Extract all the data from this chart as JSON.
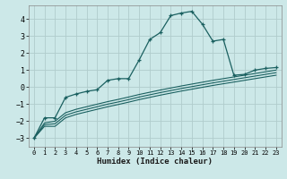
{
  "xlabel": "Humidex (Indice chaleur)",
  "background_color": "#cce8e8",
  "grid_color": "#b0cccc",
  "line_color": "#1a6060",
  "xlim": [
    -0.5,
    23.5
  ],
  "ylim": [
    -3.5,
    4.8
  ],
  "yticks": [
    -3,
    -2,
    -1,
    0,
    1,
    2,
    3,
    4
  ],
  "xticks": [
    0,
    1,
    2,
    3,
    4,
    5,
    6,
    7,
    8,
    9,
    10,
    11,
    12,
    13,
    14,
    15,
    16,
    17,
    18,
    19,
    20,
    21,
    22,
    23
  ],
  "series1_x": [
    0,
    1,
    2,
    3,
    4,
    5,
    6,
    7,
    8,
    9,
    10,
    11,
    12,
    13,
    14,
    15,
    16,
    17,
    18,
    19,
    20,
    21,
    22,
    23
  ],
  "series1_y": [
    -3.0,
    -1.8,
    -1.8,
    -0.6,
    -0.4,
    -0.25,
    -0.15,
    0.4,
    0.5,
    0.5,
    1.6,
    2.8,
    3.2,
    4.2,
    4.35,
    4.45,
    3.7,
    2.7,
    2.8,
    0.7,
    0.75,
    1.0,
    1.1,
    1.15
  ],
  "series2_x": [
    0,
    1,
    2,
    3,
    4,
    5,
    6,
    7,
    8,
    9,
    10,
    11,
    12,
    13,
    14,
    15,
    16,
    17,
    18,
    19,
    20,
    21,
    22,
    23
  ],
  "series2_y": [
    -3.0,
    -2.1,
    -2.0,
    -1.5,
    -1.3,
    -1.15,
    -1.0,
    -0.85,
    -0.72,
    -0.58,
    -0.43,
    -0.3,
    -0.17,
    -0.05,
    0.07,
    0.18,
    0.29,
    0.4,
    0.5,
    0.6,
    0.7,
    0.8,
    0.9,
    1.0
  ],
  "series3_x": [
    0,
    1,
    2,
    3,
    4,
    5,
    6,
    7,
    8,
    9,
    10,
    11,
    12,
    13,
    14,
    15,
    16,
    17,
    18,
    19,
    20,
    21,
    22,
    23
  ],
  "series3_y": [
    -3.0,
    -2.2,
    -2.15,
    -1.65,
    -1.45,
    -1.3,
    -1.15,
    -1.0,
    -0.87,
    -0.73,
    -0.58,
    -0.45,
    -0.32,
    -0.2,
    -0.08,
    0.03,
    0.14,
    0.25,
    0.35,
    0.45,
    0.55,
    0.65,
    0.75,
    0.85
  ],
  "series4_x": [
    0,
    1,
    2,
    3,
    4,
    5,
    6,
    7,
    8,
    9,
    10,
    11,
    12,
    13,
    14,
    15,
    16,
    17,
    18,
    19,
    20,
    21,
    22,
    23
  ],
  "series4_y": [
    -3.0,
    -2.3,
    -2.3,
    -1.8,
    -1.6,
    -1.45,
    -1.3,
    -1.15,
    -1.02,
    -0.88,
    -0.73,
    -0.6,
    -0.47,
    -0.35,
    -0.23,
    -0.12,
    -0.01,
    0.1,
    0.2,
    0.3,
    0.4,
    0.5,
    0.6,
    0.7
  ]
}
